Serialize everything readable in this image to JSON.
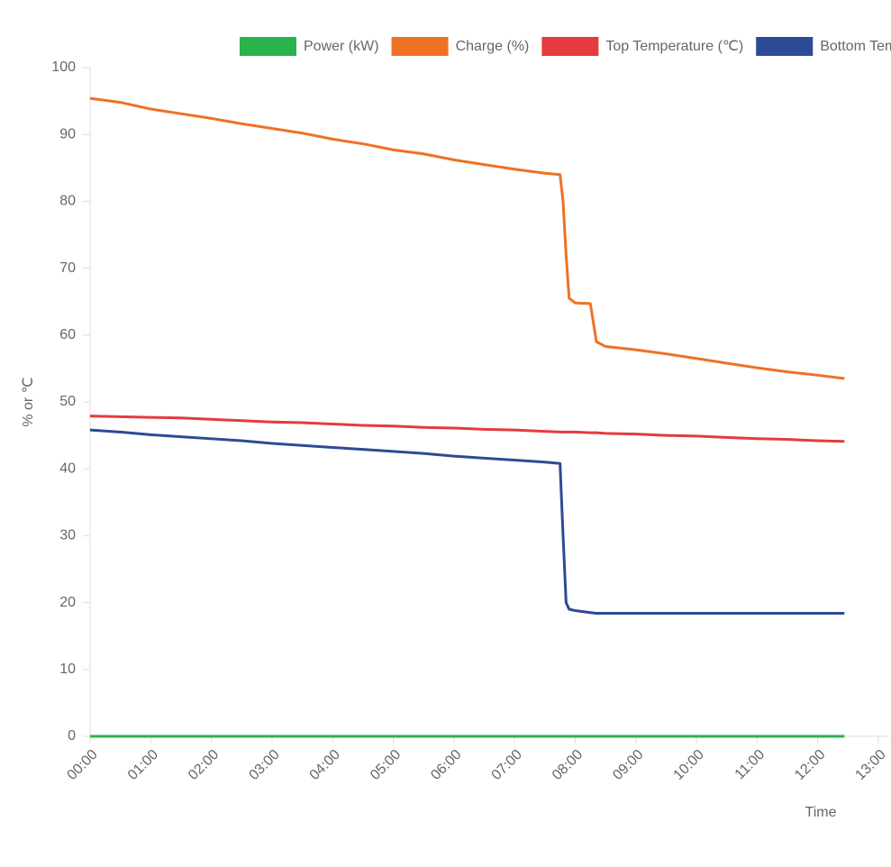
{
  "chart_data": {
    "type": "line",
    "x_label": "Time",
    "y_label": "% or ℃",
    "x": [
      0,
      0.5,
      1,
      1.5,
      2,
      2.5,
      3,
      3.5,
      4,
      4.5,
      5,
      5.5,
      6,
      6.5,
      7,
      7.5,
      7.75,
      7.8,
      7.85,
      7.9,
      8.0,
      8.25,
      8.35,
      8.5,
      9,
      9.5,
      10,
      10.5,
      11,
      11.5,
      12,
      12.44
    ],
    "series": [
      {
        "name": "Power (kW)",
        "color": "#2ab24c",
        "values": [
          0,
          0,
          0,
          0,
          0,
          0,
          0,
          0,
          0,
          0,
          0,
          0,
          0,
          0,
          0,
          0,
          0,
          0,
          0,
          0,
          0,
          0,
          0,
          0,
          0,
          0,
          0,
          0,
          0,
          0,
          0,
          0
        ]
      },
      {
        "name": "Charge (%)",
        "color": "#ef7123",
        "values": [
          95.4,
          94.8,
          93.8,
          93.1,
          92.4,
          91.6,
          90.9,
          90.2,
          89.3,
          88.6,
          87.7,
          87.1,
          86.2,
          85.5,
          84.8,
          84.2,
          84.0,
          80,
          72,
          65.5,
          64.8,
          64.7,
          59,
          58.3,
          57.8,
          57.2,
          56.5,
          55.8,
          55.1,
          54.5,
          54.0,
          53.5
        ]
      },
      {
        "name": "Top Temperature (℃)",
        "color": "#e53b3e",
        "values": [
          47.9,
          47.8,
          47.7,
          47.6,
          47.4,
          47.2,
          47.0,
          46.9,
          46.7,
          46.5,
          46.4,
          46.2,
          46.1,
          45.9,
          45.8,
          45.6,
          45.5,
          45.5,
          45.5,
          45.5,
          45.5,
          45.4,
          45.4,
          45.3,
          45.2,
          45.0,
          44.9,
          44.7,
          44.5,
          44.4,
          44.2,
          44.1
        ]
      },
      {
        "name": "Bottom Temperature (℃)",
        "color": "#2d4a96",
        "values": [
          45.8,
          45.5,
          45.1,
          44.8,
          44.5,
          44.2,
          43.8,
          43.5,
          43.2,
          42.9,
          42.6,
          42.3,
          41.9,
          41.6,
          41.3,
          41.0,
          40.8,
          30,
          20,
          19.0,
          18.8,
          18.5,
          18.4,
          18.4,
          18.4,
          18.4,
          18.4,
          18.4,
          18.4,
          18.4,
          18.4,
          18.4
        ]
      }
    ],
    "xlim": [
      0,
      13
    ],
    "xticks": [
      {
        "value": 0,
        "label": "00:00"
      },
      {
        "value": 1,
        "label": "01:00"
      },
      {
        "value": 2,
        "label": "02:00"
      },
      {
        "value": 3,
        "label": "03:00"
      },
      {
        "value": 4,
        "label": "04:00"
      },
      {
        "value": 5,
        "label": "05:00"
      },
      {
        "value": 6,
        "label": "06:00"
      },
      {
        "value": 7,
        "label": "07:00"
      },
      {
        "value": 8,
        "label": "08:00"
      },
      {
        "value": 9,
        "label": "09:00"
      },
      {
        "value": 10,
        "label": "10:00"
      },
      {
        "value": 11,
        "label": "11:00"
      },
      {
        "value": 12,
        "label": "12:00"
      },
      {
        "value": 13,
        "label": "13:00"
      }
    ],
    "ylim": [
      0,
      100
    ],
    "yticks": [
      0,
      10,
      20,
      30,
      40,
      50,
      60,
      70,
      80,
      90,
      100
    ],
    "grid": false
  }
}
